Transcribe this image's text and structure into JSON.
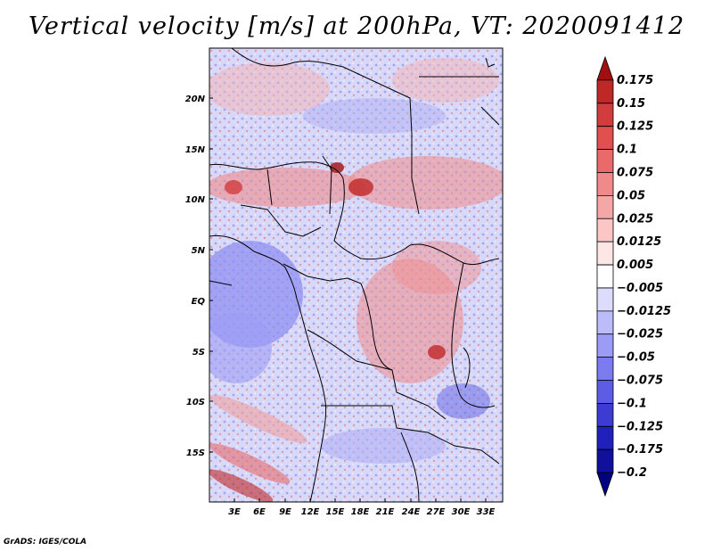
{
  "title": "Vertical velocity [m/s] at 200hPa, VT: 2020091412",
  "credit": "GrADS: IGES/COLA",
  "map": {
    "variable": "Vertical velocity",
    "units": "m/s",
    "level": "200hPa",
    "valid_time": "2020091412",
    "lon_range": [
      0,
      35
    ],
    "lat_range": [
      -20,
      25
    ],
    "lon_ticks": [
      "3E",
      "6E",
      "9E",
      "12E",
      "15E",
      "18E",
      "21E",
      "24E",
      "27E",
      "30E",
      "33E"
    ],
    "lat_ticks": [
      "20N",
      "15N",
      "10N",
      "5N",
      "EQ",
      "5S",
      "10S",
      "15S"
    ]
  },
  "colorbar": {
    "levels": [
      "0.175",
      "0.15",
      "0.125",
      "0.1",
      "0.075",
      "0.05",
      "0.025",
      "0.0125",
      "0.005",
      "-0.005",
      "-0.0125",
      "-0.025",
      "-0.05",
      "-0.075",
      "-0.1",
      "-0.125",
      "-0.175",
      "-0.2"
    ],
    "colors": [
      "#a01010",
      "#c02828",
      "#d23c3c",
      "#e05050",
      "#e86a6a",
      "#f08a8a",
      "#f5a6a6",
      "#fac6c6",
      "#fde6e6",
      "#ffffff",
      "#dcdcfc",
      "#bcbcfa",
      "#9c9cf6",
      "#7c7cee",
      "#5c5ce4",
      "#3c3cd4",
      "#2020bc",
      "#10109c",
      "#000080"
    ]
  }
}
